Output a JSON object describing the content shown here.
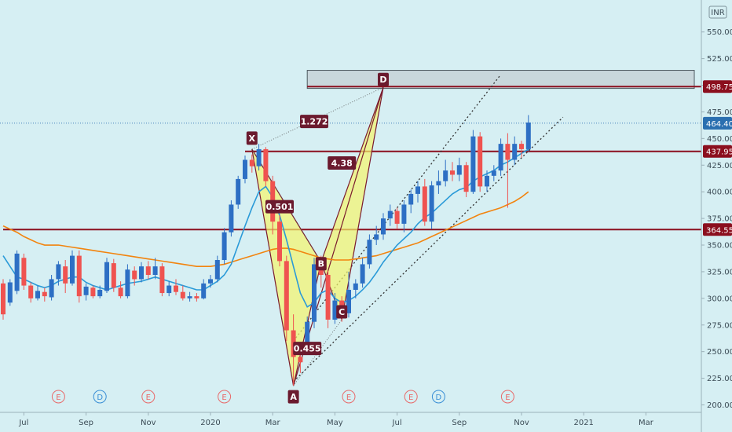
{
  "chart_data": {
    "type": "candlestick",
    "currency": "INR",
    "y_ticks": [
      200,
      225,
      250,
      275,
      300,
      325,
      350,
      375,
      400,
      425,
      450,
      475,
      500,
      525,
      550
    ],
    "y_tick_labels": [
      "200.00",
      "225.00",
      "250.00",
      "275.00",
      "300.00",
      "325.00",
      "350.00",
      "375.00",
      "400.00",
      "425.00",
      "450.00",
      "475.00",
      "500.00",
      "525.00",
      "550.00"
    ],
    "ylim": [
      193,
      580
    ],
    "x_labels": [
      {
        "label": "Jul",
        "i": 3
      },
      {
        "label": "Sep",
        "i": 12
      },
      {
        "label": "Nov",
        "i": 21
      },
      {
        "label": "2020",
        "i": 30
      },
      {
        "label": "Mar",
        "i": 39
      },
      {
        "label": "May",
        "i": 48
      },
      {
        "label": "Jul",
        "i": 57
      },
      {
        "label": "Sep",
        "i": 66
      },
      {
        "label": "Nov",
        "i": 75
      },
      {
        "label": "2021",
        "i": 84
      },
      {
        "label": "Mar",
        "i": 93
      }
    ],
    "price_tags": [
      {
        "value": 498.75,
        "label": "498.75",
        "color": "#8b0f1e"
      },
      {
        "value": 464.4,
        "label": "464.40",
        "color": "#2a6fb0"
      },
      {
        "value": 437.95,
        "label": "437.95",
        "color": "#8b0f1e"
      },
      {
        "value": 364.55,
        "label": "364.55",
        "color": "#8b0f1e"
      }
    ],
    "levels": [
      {
        "value": 498.75,
        "i0": 44,
        "i1": 101,
        "color": "#8b0f1e"
      },
      {
        "value": 437.95,
        "i0": 35,
        "i1": 101,
        "color": "#8b0f1e"
      },
      {
        "value": 364.55,
        "i0": 0,
        "i1": 101,
        "color": "#8b0f1e"
      }
    ],
    "zone": {
      "i0": 44,
      "i1": 100,
      "top": 514,
      "bottom": 497
    },
    "candles": [
      [
        314,
        285,
        318,
        280
      ],
      [
        296,
        315,
        318,
        293
      ],
      [
        307,
        342,
        345,
        304
      ],
      [
        338,
        312,
        342,
        308
      ],
      [
        312,
        300,
        315,
        296
      ],
      [
        300,
        307,
        312,
        298
      ],
      [
        306,
        302,
        310,
        297
      ],
      [
        301,
        318,
        322,
        298
      ],
      [
        318,
        332,
        335,
        312
      ],
      [
        330,
        314,
        336,
        305
      ],
      [
        314,
        340,
        345,
        312
      ],
      [
        340,
        302,
        345,
        296
      ],
      [
        303,
        311,
        314,
        298
      ],
      [
        310,
        302,
        312,
        300
      ],
      [
        302,
        308,
        312,
        300
      ],
      [
        307,
        334,
        338,
        305
      ],
      [
        333,
        310,
        337,
        306
      ],
      [
        310,
        302,
        316,
        300
      ],
      [
        302,
        327,
        332,
        300
      ],
      [
        326,
        318,
        330,
        312
      ],
      [
        318,
        330,
        334,
        315
      ],
      [
        330,
        322,
        335,
        318
      ],
      [
        322,
        330,
        338,
        318
      ],
      [
        330,
        305,
        333,
        302
      ],
      [
        305,
        312,
        316,
        302
      ],
      [
        312,
        306,
        318,
        303
      ],
      [
        306,
        300,
        312,
        298
      ],
      [
        300,
        302,
        306,
        297
      ],
      [
        302,
        300,
        305,
        297
      ],
      [
        300,
        314,
        318,
        299
      ],
      [
        314,
        318,
        322,
        310
      ],
      [
        318,
        336,
        340,
        315
      ],
      [
        336,
        362,
        366,
        332
      ],
      [
        362,
        388,
        392,
        358
      ],
      [
        388,
        412,
        415,
        384
      ],
      [
        412,
        430,
        434,
        408
      ],
      [
        430,
        424,
        435,
        418
      ],
      [
        424,
        440,
        445,
        420
      ],
      [
        440,
        410,
        442,
        405
      ],
      [
        410,
        372,
        415,
        360
      ],
      [
        372,
        335,
        378,
        330
      ],
      [
        335,
        270,
        340,
        260
      ],
      [
        270,
        245,
        285,
        218
      ],
      [
        245,
        240,
        258,
        230
      ],
      [
        255,
        278,
        283,
        250
      ],
      [
        278,
        332,
        338,
        272
      ],
      [
        332,
        322,
        340,
        310
      ],
      [
        322,
        280,
        326,
        272
      ],
      [
        280,
        298,
        305,
        276
      ],
      [
        298,
        285,
        302,
        278
      ],
      [
        286,
        308,
        325,
        282
      ],
      [
        308,
        314,
        318,
        300
      ],
      [
        314,
        332,
        338,
        310
      ],
      [
        332,
        355,
        360,
        328
      ],
      [
        355,
        360,
        368,
        350
      ],
      [
        360,
        375,
        380,
        355
      ],
      [
        375,
        382,
        388,
        368
      ],
      [
        382,
        370,
        385,
        365
      ],
      [
        370,
        388,
        392,
        362
      ],
      [
        388,
        398,
        402,
        380
      ],
      [
        398,
        405,
        410,
        390
      ],
      [
        405,
        372,
        412,
        368
      ],
      [
        372,
        406,
        410,
        365
      ],
      [
        406,
        410,
        420,
        398
      ],
      [
        410,
        420,
        430,
        405
      ],
      [
        420,
        416,
        428,
        410
      ],
      [
        416,
        425,
        432,
        410
      ],
      [
        425,
        400,
        428,
        395
      ],
      [
        400,
        452,
        458,
        398
      ],
      [
        452,
        405,
        456,
        400
      ],
      [
        405,
        415,
        420,
        400
      ],
      [
        415,
        420,
        425,
        410
      ],
      [
        420,
        445,
        450,
        415
      ],
      [
        445,
        430,
        455,
        385
      ],
      [
        430,
        445,
        452,
        425
      ],
      [
        445,
        440,
        448,
        432
      ],
      [
        440,
        465,
        472,
        438
      ]
    ],
    "ma_fast": [
      340,
      330,
      320,
      318,
      315,
      312,
      310,
      312,
      316,
      318,
      320,
      320,
      315,
      312,
      310,
      308,
      310,
      312,
      314,
      315,
      316,
      318,
      320,
      318,
      316,
      314,
      312,
      310,
      308,
      308,
      312,
      316,
      322,
      332,
      350,
      368,
      385,
      400,
      405,
      395,
      378,
      355,
      330,
      305,
      292,
      296,
      305,
      308,
      300,
      296,
      298,
      302,
      308,
      315,
      324,
      334,
      342,
      350,
      356,
      362,
      370,
      376,
      380,
      386,
      392,
      398,
      402,
      404,
      410,
      414,
      417,
      420,
      425,
      428,
      432,
      436,
      440
    ],
    "ma_slow": [
      368,
      365,
      362,
      358,
      355,
      352,
      350,
      350,
      350,
      349,
      348,
      347,
      346,
      345,
      344,
      343,
      342,
      341,
      340,
      339,
      338,
      337,
      336,
      335,
      334,
      333,
      332,
      331,
      330,
      330,
      330,
      331,
      332,
      334,
      336,
      338,
      340,
      342,
      344,
      346,
      347,
      347,
      346,
      344,
      342,
      340,
      338,
      337,
      336,
      336,
      336,
      337,
      338,
      339,
      340,
      342,
      344,
      346,
      348,
      350,
      352,
      355,
      358,
      361,
      364,
      367,
      370,
      373,
      376,
      379,
      381,
      383,
      385,
      388,
      391,
      395,
      400
    ],
    "harmonic": {
      "X": {
        "i": 36,
        "v": 440,
        "label": "X"
      },
      "A": {
        "i": 42,
        "v": 218,
        "label": "A"
      },
      "B": {
        "i": 46,
        "v": 334,
        "label": "B"
      },
      "C": {
        "i": 49,
        "v": 280,
        "label": "C"
      },
      "D": {
        "i": 55,
        "v": 498,
        "label": "D"
      },
      "ratios": [
        {
          "label": "0.501",
          "i": 40,
          "v": 386
        },
        {
          "label": "0.455",
          "i": 44,
          "v": 253
        },
        {
          "label": "4.38",
          "i": 49,
          "v": 427
        },
        {
          "label": "1.272",
          "i": 45,
          "v": 466
        }
      ]
    },
    "channel": [
      {
        "i0": 42,
        "v0": 222,
        "i1": 81,
        "v1": 470
      },
      {
        "i0": 42,
        "v0": 260,
        "i1": 72,
        "v1": 510
      }
    ],
    "events": [
      {
        "i": 8,
        "label": "E",
        "color": "#e86b6b"
      },
      {
        "i": 14,
        "label": "D",
        "color": "#3a8fd6"
      },
      {
        "i": 21,
        "label": "E",
        "color": "#e86b6b"
      },
      {
        "i": 32,
        "label": "E",
        "color": "#e86b6b"
      },
      {
        "i": 50,
        "label": "E",
        "color": "#e86b6b"
      },
      {
        "i": 59,
        "label": "E",
        "color": "#e86b6b"
      },
      {
        "i": 63,
        "label": "D",
        "color": "#3a8fd6"
      },
      {
        "i": 73,
        "label": "E",
        "color": "#e86b6b"
      }
    ],
    "colors": {
      "up": "#2d6fc4",
      "down": "#ef5350",
      "ma_fast": "#2a9ad8",
      "ma_slow": "#f2840f",
      "level": "#8b0f1e",
      "pattern_fill": "#f5f56b",
      "tag": "#6b1a2e"
    }
  }
}
